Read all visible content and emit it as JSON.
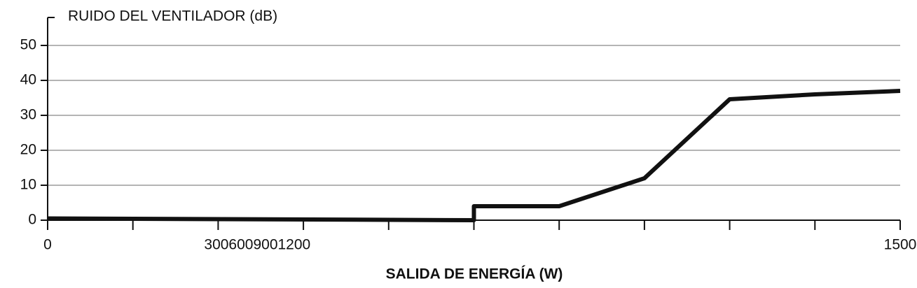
{
  "chart_data": {
    "type": "line",
    "title": "RUIDO DEL VENTILADOR (dB)",
    "x_label": "SALIDA DE ENERGÍA (W)",
    "x": [
      0,
      750,
      750,
      900,
      1050,
      1200,
      1350,
      1500
    ],
    "series": [
      {
        "name": "RUIDO DEL VENTILADOR (dB)",
        "color": "#111111",
        "values": [
          0.5,
          0,
          4,
          4,
          12,
          34.6,
          36,
          37
        ]
      }
    ],
    "xlim": [
      0,
      1500
    ],
    "xticks": [
      0,
      150,
      300,
      450,
      600,
      750,
      900,
      1050,
      1200,
      1350,
      1500
    ],
    "xtick_labels": [
      {
        "value": 0,
        "label": "0"
      },
      {
        "value": 300,
        "label": "3006009001200"
      },
      {
        "value": 1500,
        "label": "1500"
      }
    ],
    "ylim": [
      0,
      58
    ],
    "yticks": [
      0,
      10,
      20,
      30,
      40,
      50
    ],
    "grid": true
  }
}
